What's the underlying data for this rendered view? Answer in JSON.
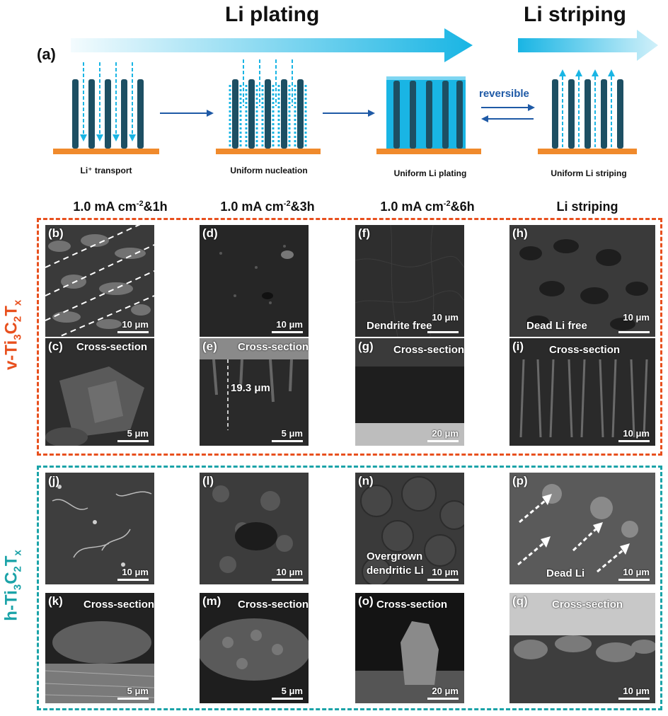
{
  "header": {
    "plating_title": "Li plating",
    "striping_title": "Li striping",
    "panel_label": "(a)",
    "reversible_label": "reversible"
  },
  "stages": [
    {
      "label": "Li⁺ transport"
    },
    {
      "label": "Uniform nucleation"
    },
    {
      "label": "Uniform Li plating"
    },
    {
      "label": "Uniform Li striping"
    }
  ],
  "columns": [
    {
      "text": "1.0 mA cm",
      "sup": "-2",
      "tail": "&1h"
    },
    {
      "text": "1.0 mA cm",
      "sup": "-2",
      "tail": "&3h"
    },
    {
      "text": "1.0 mA cm",
      "sup": "-2",
      "tail": "&6h"
    },
    {
      "text": "Li striping",
      "sup": "",
      "tail": ""
    }
  ],
  "rows": {
    "v": {
      "prefix": "v-Ti",
      "s1": "3",
      "mid": "C",
      "s2": "2",
      "mid2": "T",
      "s3": "x",
      "color": "#e8501e"
    },
    "h": {
      "prefix": "h-Ti",
      "s1": "3",
      "mid": "C",
      "s2": "2",
      "mid2": "T",
      "s3": "x",
      "color": "#1ba3a8"
    }
  },
  "colors": {
    "orange_frame": "#e8501e",
    "teal_frame": "#1ba3a8",
    "arrow_cyan": "#19b5e4",
    "pillar_dark": "#1d4f63",
    "substrate_orange": "#f08a2c",
    "arrow_blue": "#1f5aa6"
  },
  "panels": {
    "b": {
      "label": "(b)",
      "scale": "10 μm",
      "note": ""
    },
    "c": {
      "label": "(c)",
      "scale": "5 μm",
      "note": "Cross-section"
    },
    "d": {
      "label": "(d)",
      "scale": "10 μm",
      "note": ""
    },
    "e": {
      "label": "(e)",
      "scale": "5 μm",
      "note": "Cross-section",
      "thickness": "19.3 μm"
    },
    "f": {
      "label": "(f)",
      "scale": "10 μm",
      "note": "Dendrite free"
    },
    "g": {
      "label": "(g)",
      "scale": "20 μm",
      "note": "Cross-section"
    },
    "h": {
      "label": "(h)",
      "scale": "10 μm",
      "note": "Dead Li free"
    },
    "i": {
      "label": "(i)",
      "scale": "10 μm",
      "note": "Cross-section"
    },
    "j": {
      "label": "(j)",
      "scale": "10 μm",
      "note": ""
    },
    "k": {
      "label": "(k)",
      "scale": "5 μm",
      "note": "Cross-section"
    },
    "l": {
      "label": "(l)",
      "scale": "10 μm",
      "note": ""
    },
    "m": {
      "label": "(m)",
      "scale": "5 μm",
      "note": "Cross-section"
    },
    "n": {
      "label": "(n)",
      "scale": "10 μm",
      "note_line1": "Overgrown",
      "note_line2": "dendritic Li"
    },
    "o": {
      "label": "(o)",
      "scale": "20 μm",
      "note": "Cross-section"
    },
    "p": {
      "label": "(p)",
      "scale": "10 μm",
      "note": "Dead Li"
    },
    "q": {
      "label": "(q)",
      "scale": "10 μm",
      "note": "Cross-section"
    }
  }
}
